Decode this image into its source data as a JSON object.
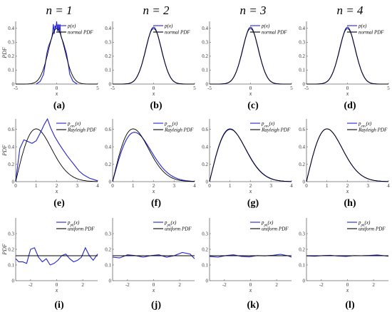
{
  "column_headers": [
    "n = 1",
    "n = 2",
    "n = 3",
    "n = 4"
  ],
  "captions": [
    "(a)",
    "(b)",
    "(c)",
    "(d)",
    "(e)",
    "(f)",
    "(g)",
    "(h)",
    "(i)",
    "(j)",
    "(k)",
    "(l)"
  ],
  "colors": {
    "empirical": "#2323d0",
    "theory": "#000000"
  },
  "chart_data": [
    {
      "id": "a",
      "type": "line",
      "row": 0,
      "col": 0,
      "variant": 1,
      "model": "normal",
      "xlabel": "x",
      "ylabel": "PDF",
      "xlim": [
        -5,
        5
      ],
      "ylim": [
        0,
        0.45
      ],
      "xticks": [
        -5,
        0,
        5
      ],
      "yticks": [
        0,
        0.1,
        0.2,
        0.3,
        0.4
      ],
      "legend": [
        "p(x)",
        "normal PDF"
      ],
      "legend_position": "top-right",
      "grid": false,
      "series": [
        {
          "name": "p(x)",
          "x": [
            -2.5,
            -2,
            -1.6,
            -1.4,
            -1.2,
            -1.0,
            -0.8,
            -0.6,
            -0.5,
            -0.4,
            -0.3,
            -0.2,
            -0.1,
            0,
            0.1,
            0.2,
            0.3,
            0.4,
            0.5,
            0.6,
            0.8,
            1.0,
            1.2,
            1.4,
            1.6,
            2,
            2.5
          ],
          "y": [
            0,
            0.02,
            0.07,
            0.14,
            0.22,
            0.27,
            0.3,
            0.33,
            0.37,
            0.43,
            0.36,
            0.42,
            0.4,
            0.45,
            0.38,
            0.43,
            0.37,
            0.43,
            0.35,
            0.33,
            0.3,
            0.26,
            0.22,
            0.15,
            0.07,
            0.02,
            0
          ]
        },
        {
          "name": "normal PDF",
          "function": "normal",
          "params": [
            0,
            1
          ]
        }
      ]
    },
    {
      "id": "b",
      "type": "line",
      "row": 0,
      "col": 1,
      "variant": 2,
      "model": "normal",
      "xlabel": "x",
      "ylabel": "",
      "xlim": [
        -5,
        5
      ],
      "ylim": [
        0,
        0.45
      ],
      "xticks": [
        -5,
        0,
        5
      ],
      "yticks": [
        0,
        0.1,
        0.2,
        0.3,
        0.4
      ],
      "legend": [
        "p(x)",
        "normal PDF"
      ],
      "legend_position": "top-right",
      "grid": false,
      "series": [
        {
          "name": "p(x)",
          "function": "normal_dev",
          "params": [
            0,
            1
          ]
        },
        {
          "name": "normal PDF",
          "function": "normal",
          "params": [
            0,
            1
          ]
        }
      ]
    },
    {
      "id": "c",
      "type": "line",
      "row": 0,
      "col": 2,
      "variant": 3,
      "model": "normal",
      "xlabel": "x",
      "ylabel": "",
      "xlim": [
        -5,
        5
      ],
      "ylim": [
        0,
        0.45
      ],
      "xticks": [
        -5,
        0,
        5
      ],
      "yticks": [
        0,
        0.1,
        0.2,
        0.3,
        0.4
      ],
      "legend": [
        "p(x)",
        "normal PDF"
      ],
      "legend_position": "top-right",
      "grid": false,
      "series": [
        {
          "name": "p(x)",
          "function": "normal_dev",
          "params": [
            0,
            1
          ]
        },
        {
          "name": "normal PDF",
          "function": "normal",
          "params": [
            0,
            1
          ]
        }
      ]
    },
    {
      "id": "d",
      "type": "line",
      "row": 0,
      "col": 3,
      "variant": 4,
      "model": "normal",
      "xlabel": "x",
      "ylabel": "",
      "xlim": [
        -5,
        5
      ],
      "ylim": [
        0,
        0.45
      ],
      "xticks": [
        -5,
        0,
        5
      ],
      "yticks": [
        0,
        0.1,
        0.2,
        0.3,
        0.4
      ],
      "legend": [
        "p(x)",
        "normal PDF"
      ],
      "legend_position": "top-right",
      "grid": false,
      "series": [
        {
          "name": "p(x)",
          "function": "normal_dev",
          "params": [
            0,
            1
          ]
        },
        {
          "name": "normal PDF",
          "function": "normal",
          "params": [
            0,
            1
          ]
        }
      ]
    },
    {
      "id": "e",
      "type": "line",
      "row": 1,
      "col": 0,
      "variant": 1,
      "model": "rayleigh",
      "xlabel": "x",
      "ylabel": "PDF",
      "xlim": [
        0,
        4
      ],
      "ylim": [
        0,
        0.72
      ],
      "xticks": [
        0,
        1,
        2,
        3,
        4
      ],
      "yticks": [
        0,
        0.2,
        0.4,
        0.6
      ],
      "legend": [
        "p_env(x)",
        "Rayleigh PDF"
      ],
      "legend_position": "top-right",
      "grid": false,
      "series": [
        {
          "name": "p_env(x)",
          "x": [
            0,
            0.2,
            0.4,
            0.6,
            0.8,
            1.0,
            1.2,
            1.4,
            1.55,
            1.7,
            1.9,
            2.1,
            2.3,
            2.5,
            2.7,
            2.9,
            3.1,
            3.3,
            3.6,
            4.0
          ],
          "y": [
            0,
            0.38,
            0.48,
            0.46,
            0.44,
            0.47,
            0.56,
            0.66,
            0.72,
            0.62,
            0.52,
            0.44,
            0.37,
            0.3,
            0.24,
            0.18,
            0.12,
            0.08,
            0.04,
            0.01
          ]
        },
        {
          "name": "Rayleigh PDF",
          "function": "rayleigh",
          "params": [
            1
          ]
        }
      ]
    },
    {
      "id": "f",
      "type": "line",
      "row": 1,
      "col": 1,
      "variant": 2,
      "model": "rayleigh",
      "xlabel": "x",
      "ylabel": "",
      "xlim": [
        0,
        4
      ],
      "ylim": [
        0,
        0.72
      ],
      "xticks": [
        0,
        1,
        2,
        3,
        4
      ],
      "yticks": [
        0,
        0.2,
        0.4,
        0.6
      ],
      "legend": [
        "p_env(x)",
        "Rayleigh PDF"
      ],
      "legend_position": "top-right",
      "grid": false,
      "series": [
        {
          "name": "p_env(x)",
          "function": "rayleigh_dev",
          "params": [
            1.07
          ]
        },
        {
          "name": "Rayleigh PDF",
          "function": "rayleigh",
          "params": [
            1
          ]
        }
      ]
    },
    {
      "id": "g",
      "type": "line",
      "row": 1,
      "col": 2,
      "variant": 3,
      "model": "rayleigh",
      "xlabel": "x",
      "ylabel": "",
      "xlim": [
        0,
        4
      ],
      "ylim": [
        0,
        0.72
      ],
      "xticks": [
        0,
        1,
        2,
        3,
        4
      ],
      "yticks": [
        0,
        0.2,
        0.4,
        0.6
      ],
      "legend": [
        "p_env(x)",
        "Rayleigh PDF"
      ],
      "legend_position": "top-right",
      "grid": false,
      "series": [
        {
          "name": "p_env(x)",
          "function": "rayleigh_dev",
          "params": [
            1.01
          ]
        },
        {
          "name": "Rayleigh PDF",
          "function": "rayleigh",
          "params": [
            1
          ]
        }
      ]
    },
    {
      "id": "h",
      "type": "line",
      "row": 1,
      "col": 3,
      "variant": 4,
      "model": "rayleigh",
      "xlabel": "x",
      "ylabel": "",
      "xlim": [
        0,
        4
      ],
      "ylim": [
        0,
        0.72
      ],
      "xticks": [
        0,
        1,
        2,
        3,
        4
      ],
      "yticks": [
        0,
        0.2,
        0.4,
        0.6
      ],
      "legend": [
        "p_env(x)",
        "Rayleigh PDF"
      ],
      "legend_position": "top-right",
      "grid": false,
      "series": [
        {
          "name": "p_env(x)",
          "function": "rayleigh_dev",
          "params": [
            1.0
          ]
        },
        {
          "name": "Rayleigh PDF",
          "function": "rayleigh",
          "params": [
            1
          ]
        }
      ]
    },
    {
      "id": "i",
      "type": "line",
      "row": 2,
      "col": 0,
      "variant": 1,
      "model": "uniform",
      "xlabel": "x",
      "ylabel": "PDF",
      "xlim": [
        -3.14,
        3.14
      ],
      "ylim": [
        0,
        0.4
      ],
      "xticks": [
        -2,
        0,
        2
      ],
      "yticks": [
        0,
        0.1,
        0.2,
        0.3
      ],
      "legend": [
        "p_ph(x)",
        "uniform PDF"
      ],
      "legend_position": "top-right",
      "grid": false,
      "series": [
        {
          "name": "p_ph(x)",
          "x": [
            -3.14,
            -2.9,
            -2.6,
            -2.3,
            -2.0,
            -1.7,
            -1.4,
            -1.1,
            -0.8,
            -0.5,
            -0.2,
            0.1,
            0.4,
            0.7,
            1.0,
            1.3,
            1.6,
            1.9,
            2.2,
            2.5,
            2.8,
            3.14
          ],
          "y": [
            0.14,
            0.12,
            0.12,
            0.11,
            0.2,
            0.21,
            0.15,
            0.12,
            0.14,
            0.1,
            0.11,
            0.13,
            0.16,
            0.17,
            0.14,
            0.12,
            0.13,
            0.15,
            0.21,
            0.16,
            0.13,
            0.17
          ]
        },
        {
          "name": "uniform PDF",
          "function": "uniform",
          "params": [
            0.159
          ]
        }
      ]
    },
    {
      "id": "j",
      "type": "line",
      "row": 2,
      "col": 1,
      "variant": 2,
      "model": "uniform",
      "xlabel": "x",
      "ylabel": "",
      "xlim": [
        -3.14,
        3.14
      ],
      "ylim": [
        0,
        0.4
      ],
      "xticks": [
        -2,
        0,
        2
      ],
      "yticks": [
        0,
        0.1,
        0.2,
        0.3
      ],
      "legend": [
        "p_ph(x)",
        "uniform PDF"
      ],
      "legend_position": "top-right",
      "grid": false,
      "series": [
        {
          "name": "p_ph(x)",
          "x": [
            -3.14,
            -2.6,
            -2.0,
            -1.4,
            -0.8,
            -0.2,
            0.4,
            1.0,
            1.6,
            2.2,
            2.8,
            3.14
          ],
          "y": [
            0.15,
            0.145,
            0.165,
            0.16,
            0.15,
            0.16,
            0.165,
            0.15,
            0.16,
            0.18,
            0.17,
            0.14
          ]
        },
        {
          "name": "uniform PDF",
          "function": "uniform",
          "params": [
            0.159
          ]
        }
      ]
    },
    {
      "id": "k",
      "type": "line",
      "row": 2,
      "col": 2,
      "variant": 3,
      "model": "uniform",
      "xlabel": "x",
      "ylabel": "",
      "xlim": [
        -3.14,
        3.14
      ],
      "ylim": [
        0,
        0.4
      ],
      "xticks": [
        -2,
        0,
        2
      ],
      "yticks": [
        0,
        0.1,
        0.2,
        0.3
      ],
      "legend": [
        "p_ph(x)",
        "uniform PDF"
      ],
      "legend_position": "top-right",
      "grid": false,
      "series": [
        {
          "name": "p_ph(x)",
          "x": [
            -3.14,
            -2.5,
            -1.9,
            -1.3,
            -0.7,
            -0.1,
            0.5,
            1.1,
            1.7,
            2.3,
            2.9,
            3.14
          ],
          "y": [
            0.155,
            0.15,
            0.16,
            0.165,
            0.155,
            0.152,
            0.16,
            0.158,
            0.162,
            0.168,
            0.158,
            0.15
          ]
        },
        {
          "name": "uniform PDF",
          "function": "uniform",
          "params": [
            0.159
          ]
        }
      ]
    },
    {
      "id": "l",
      "type": "line",
      "row": 2,
      "col": 3,
      "variant": 4,
      "model": "uniform",
      "xlabel": "x",
      "ylabel": "",
      "xlim": [
        -3.14,
        3.14
      ],
      "ylim": [
        0,
        0.4
      ],
      "xticks": [
        -2,
        0,
        2
      ],
      "yticks": [
        0,
        0.1,
        0.2,
        0.3
      ],
      "legend": [
        "p_ph(x)",
        "uniform PDF"
      ],
      "legend_position": "top-right",
      "grid": false,
      "series": [
        {
          "name": "p_ph(x)",
          "x": [
            -3.14,
            -2.5,
            -1.9,
            -1.3,
            -0.7,
            -0.1,
            0.5,
            1.1,
            1.7,
            2.3,
            2.9,
            3.14
          ],
          "y": [
            0.158,
            0.156,
            0.16,
            0.162,
            0.157,
            0.155,
            0.16,
            0.159,
            0.161,
            0.164,
            0.158,
            0.156
          ]
        },
        {
          "name": "uniform PDF",
          "function": "uniform",
          "params": [
            0.159
          ]
        }
      ]
    }
  ]
}
